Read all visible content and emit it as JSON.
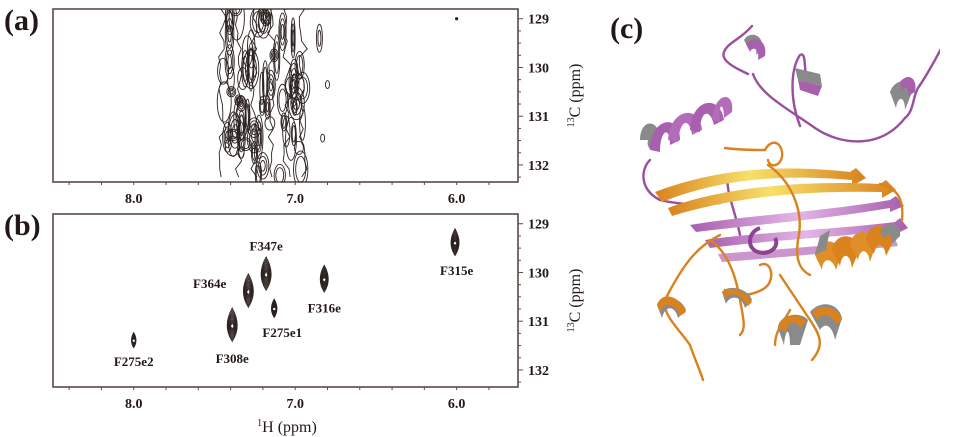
{
  "panels": {
    "a": {
      "label": "(a)"
    },
    "b": {
      "label": "(b)"
    },
    "c": {
      "label": "(c)"
    }
  },
  "axes": {
    "x_title_prefix": "1",
    "x_title": "H (ppm)",
    "y_title_prefix": "13",
    "y_title": "C (ppm)"
  },
  "colors": {
    "ink": "#231815",
    "frame": "#5a4a45",
    "contour": "#2b2220",
    "purple": "#9a4f9e",
    "purple_light": "#c58ac8",
    "orange": "#d9821e",
    "orange_light": "#f0b25a",
    "helix_inner": "#8a8a8a"
  },
  "chart_data": [
    {
      "panel": "(a)",
      "type": "heatmap",
      "subtype": "2D NMR contour spectrum",
      "title": "",
      "xlabel": "1H (ppm)",
      "ylabel": "13C (ppm)",
      "xlim": [
        8.5,
        5.62
      ],
      "ylim": [
        128.8,
        132.35
      ],
      "x_ticks": [
        8.0,
        7.0,
        6.0
      ],
      "x_tick_labels": [
        "8.0",
        "7.0",
        "6.0"
      ],
      "y_ticks": [
        129,
        130,
        131,
        132
      ],
      "y_tick_labels": [
        "129",
        "130",
        "131",
        "132"
      ],
      "grid": false,
      "description": "Broad overlapping contour band spanning ~7.4-6.9 ppm (1H) across full 13C range; minor isolated contours near 6.85 ppm and a small dot at 6.0/129.0",
      "features": [
        {
          "x_range": [
            7.45,
            6.95
          ],
          "y_range": [
            128.8,
            132.35
          ],
          "kind": "broad band"
        },
        {
          "x": 6.85,
          "y": 129.4,
          "kind": "elongated contour"
        },
        {
          "x": 6.8,
          "y": 130.35,
          "kind": "small contour"
        },
        {
          "x": 6.83,
          "y": 131.45,
          "kind": "small contour"
        },
        {
          "x": 6.0,
          "y": 129.0,
          "kind": "dot"
        }
      ]
    },
    {
      "panel": "(b)",
      "type": "scatter",
      "subtype": "2D NMR contour spectrum (assigned peaks)",
      "title": "",
      "xlabel": "1H (ppm)",
      "ylabel": "13C (ppm)",
      "xlim": [
        8.5,
        5.62
      ],
      "ylim": [
        128.8,
        132.35
      ],
      "x_ticks": [
        8.0,
        7.0,
        6.0
      ],
      "x_tick_labels": [
        "8.0",
        "7.0",
        "6.0"
      ],
      "y_ticks": [
        129,
        130,
        131,
        132
      ],
      "y_tick_labels": [
        "129",
        "130",
        "131",
        "132"
      ],
      "grid": false,
      "peaks": [
        {
          "label": "F275e2",
          "x": 8.0,
          "y": 131.4,
          "size": 0.45,
          "lx": 8.0,
          "ly": 131.82
        },
        {
          "label": "F308e",
          "x": 7.39,
          "y": 131.1,
          "size": 1.0,
          "lx": 7.39,
          "ly": 131.75
        },
        {
          "label": "F364e",
          "x": 7.29,
          "y": 130.4,
          "size": 1.0,
          "lx": 7.53,
          "ly": 130.22
        },
        {
          "label": "F347e",
          "x": 7.18,
          "y": 130.05,
          "size": 1.0,
          "lx": 7.18,
          "ly": 129.45
        },
        {
          "label": "F275e1",
          "x": 7.13,
          "y": 130.75,
          "size": 0.55,
          "lx": 7.08,
          "ly": 131.22
        },
        {
          "label": "F316e",
          "x": 6.82,
          "y": 130.15,
          "size": 0.8,
          "lx": 6.82,
          "ly": 130.72
        },
        {
          "label": "F315e",
          "x": 6.01,
          "y": 129.4,
          "size": 0.8,
          "lx": 6.0,
          "ly": 129.95
        }
      ]
    }
  ]
}
